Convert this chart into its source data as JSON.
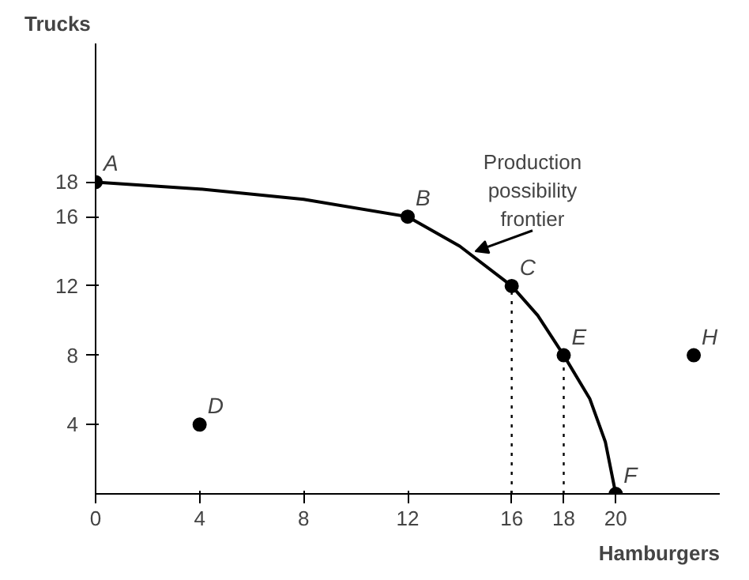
{
  "chart_data": {
    "type": "line",
    "xlabel": "Hamburgers",
    "ylabel": "Trucks",
    "xlim": [
      0,
      24
    ],
    "ylim": [
      0,
      26
    ],
    "xticks": [
      0,
      4,
      8,
      12,
      16,
      18,
      20
    ],
    "yticks": [
      4,
      8,
      12,
      16,
      18
    ],
    "grid": false,
    "series": [
      {
        "color": "#000000",
        "marker": "none",
        "line_style": "solid",
        "x": [
          0,
          4,
          8,
          12,
          14,
          16,
          17,
          18,
          19,
          19.6,
          20
        ],
        "values": [
          18,
          17.6,
          17,
          16,
          14.3,
          12,
          10.3,
          8,
          5.5,
          3,
          0
        ]
      },
      {
        "type": "scatter",
        "color": "#000000",
        "marker": "circle",
        "x": [
          0,
          12,
          16,
          18,
          20,
          4,
          23
        ],
        "values": [
          18,
          16,
          12,
          8,
          0,
          4,
          8
        ]
      },
      {
        "color": "#000000",
        "marker": "none",
        "line_style": "dotted",
        "x": [
          16,
          16
        ],
        "values": [
          0,
          12
        ]
      },
      {
        "color": "#000000",
        "marker": "none",
        "line_style": "dotted",
        "x": [
          18,
          18
        ],
        "values": [
          0,
          8
        ]
      }
    ],
    "annotations": [
      {
        "text": "A",
        "x": 0,
        "y": 18
      },
      {
        "text": "B",
        "x": 12,
        "y": 16
      },
      {
        "text": "C",
        "x": 16,
        "y": 12
      },
      {
        "text": "E",
        "x": 18,
        "y": 8
      },
      {
        "text": "F",
        "x": 20,
        "y": 0
      },
      {
        "text": "D",
        "x": 4,
        "y": 4
      },
      {
        "text": "H",
        "x": 23,
        "y": 8
      },
      {
        "text": "Production\npossibility\nfrontier",
        "x": 14.6,
        "y": 14
      }
    ]
  }
}
